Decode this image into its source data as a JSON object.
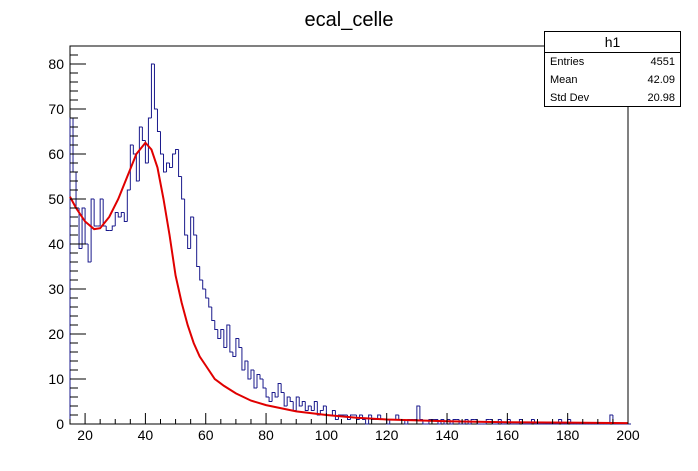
{
  "chart_data": {
    "type": "histogram",
    "title": "ecal_celle",
    "xlabel": "",
    "ylabel": "",
    "xlim": [
      15,
      200
    ],
    "ylim": [
      0,
      84
    ],
    "x_ticks": [
      20,
      40,
      60,
      80,
      100,
      120,
      140,
      160,
      180,
      200
    ],
    "y_ticks": [
      0,
      10,
      20,
      30,
      40,
      50,
      60,
      70,
      80
    ],
    "bin_width": 1,
    "bin_start": 15,
    "values": [
      68,
      56,
      48,
      39,
      48,
      40,
      36,
      50,
      44,
      44,
      50,
      44,
      43,
      43,
      44,
      47,
      46,
      47,
      45,
      52,
      62,
      60,
      54,
      66,
      63,
      58,
      68,
      80,
      70,
      65,
      60,
      56,
      58,
      57,
      60,
      61,
      55,
      50,
      42,
      39,
      46,
      42,
      35,
      32,
      30,
      28,
      26,
      23,
      21,
      19,
      21,
      17,
      22,
      16,
      15,
      19,
      17,
      12,
      14,
      10,
      12,
      8,
      11,
      10,
      8,
      6,
      5,
      7,
      6,
      9,
      7,
      4,
      6,
      5,
      3,
      6,
      4,
      5,
      3,
      4,
      3,
      5,
      2,
      3,
      4,
      2,
      2,
      3,
      1,
      2,
      2,
      2,
      1,
      2,
      2,
      1,
      2,
      1,
      0,
      2,
      1,
      1,
      2,
      1,
      1,
      0,
      1,
      1,
      2,
      1,
      1,
      0,
      1,
      1,
      1,
      4,
      1,
      0,
      0,
      1,
      1,
      1,
      0,
      1,
      0,
      1,
      0,
      1,
      1,
      0,
      0,
      1,
      0,
      1,
      1,
      0,
      0,
      0,
      1,
      1,
      0,
      0,
      1,
      0,
      0,
      1,
      0,
      0,
      0,
      1,
      0,
      0,
      0,
      1,
      0,
      0,
      0,
      0,
      0,
      0,
      0,
      0,
      1,
      0,
      0,
      1,
      0,
      0,
      0,
      0,
      0,
      0,
      0,
      0,
      0,
      0,
      0,
      0,
      0,
      2,
      0,
      0,
      0,
      0,
      0,
      0
    ],
    "fit_curve": {
      "x": [
        15,
        17,
        20,
        23,
        25,
        28,
        31,
        34,
        37,
        40,
        42,
        44,
        46,
        48,
        50,
        52,
        54,
        56,
        58,
        60,
        63,
        66,
        70,
        75,
        80,
        90,
        100,
        110,
        120,
        140,
        160,
        180,
        200
      ],
      "y": [
        50.5,
        48,
        45,
        43.3,
        43.5,
        46,
        50,
        55,
        60,
        62.5,
        61,
        57,
        50,
        42,
        33,
        27,
        22,
        18,
        15,
        13,
        10,
        8.5,
        6.8,
        5.2,
        4.2,
        2.8,
        2.0,
        1.4,
        1.0,
        0.6,
        0.4,
        0.3,
        0.2
      ]
    },
    "colors": {
      "histogram": "#1a1a8c",
      "fit": "#e00000"
    },
    "stats": {
      "name": "h1",
      "entries_label": "Entries",
      "entries": "4551",
      "mean_label": "Mean",
      "mean": "42.09",
      "std_label": "Std Dev",
      "std": "20.98"
    }
  }
}
